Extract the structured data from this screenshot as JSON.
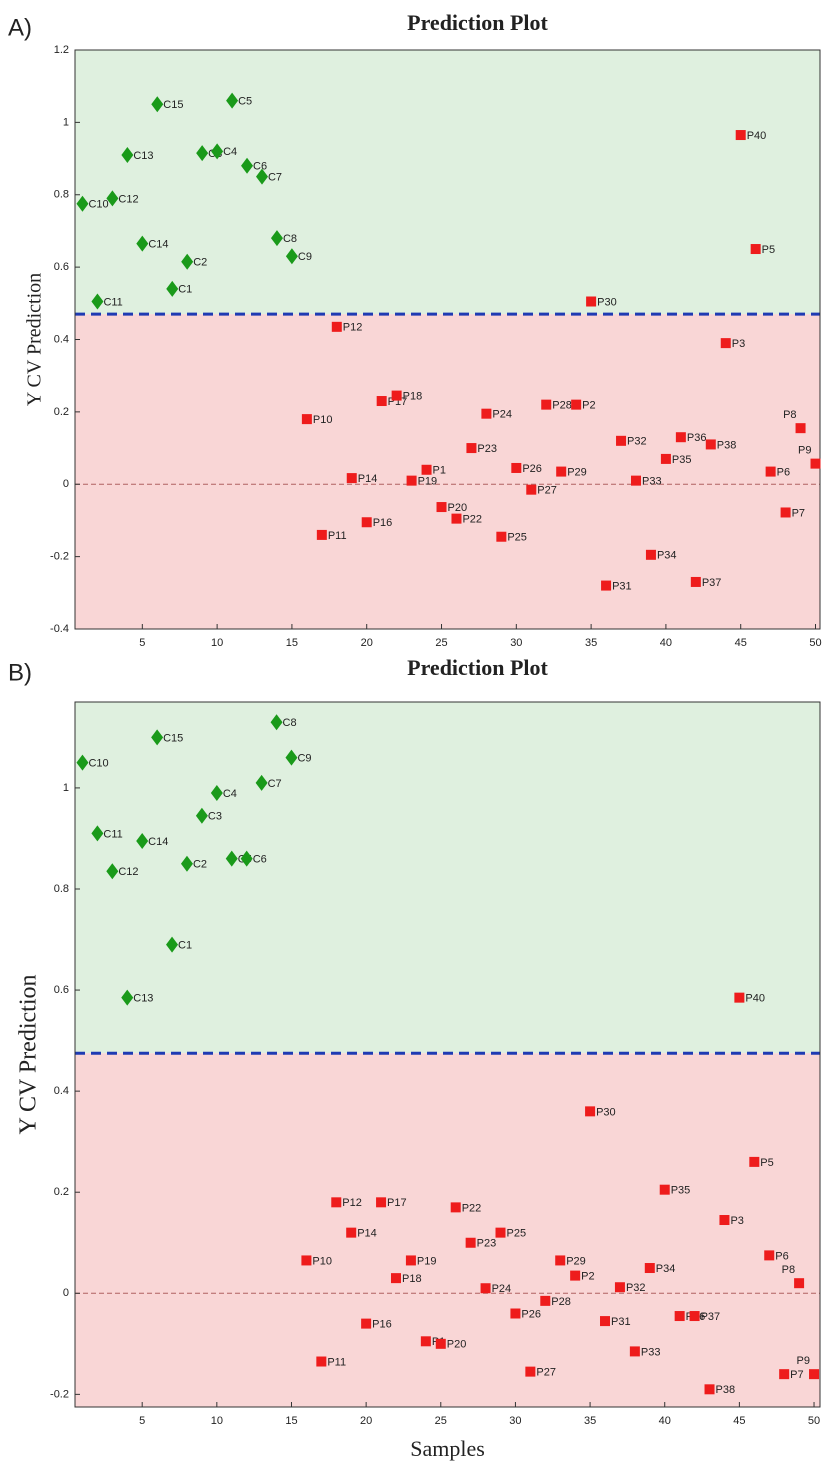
{
  "chart_data": [
    {
      "type": "scatter",
      "panel_label": "A)",
      "title": "Prediction Plot",
      "ylabel": "Y CV Prediction",
      "xlim": [
        0.5,
        50.3
      ],
      "xticks": [
        5,
        10,
        15,
        20,
        25,
        30,
        35,
        40,
        45,
        50
      ],
      "ylim": [
        -0.4,
        1.2
      ],
      "yticks": [
        -0.4,
        -0.2,
        0,
        0.2,
        0.4,
        0.6,
        0.8,
        1,
        1.2
      ],
      "threshold": 0.47,
      "threshold_color": "#1f3bb3",
      "reference_line": 0,
      "above_color": "#dff0df",
      "below_color": "#f9d6d6",
      "series": [
        {
          "marker": "diamond",
          "color": "#1a9a1a",
          "x": [
            1,
            2,
            3,
            4,
            5,
            6,
            7,
            8,
            9,
            10,
            11,
            12,
            13,
            14,
            15
          ],
          "labels": [
            "C10",
            "C11",
            "C12",
            "C13",
            "C14",
            "C15",
            "C1",
            "C2",
            "C3",
            "C4",
            "C5",
            "C6",
            "C7",
            "C8",
            "C9"
          ],
          "values": [
            0.775,
            0.505,
            0.79,
            0.91,
            0.665,
            1.05,
            0.54,
            0.615,
            0.915,
            0.92,
            1.06,
            0.88,
            0.85,
            0.68,
            0.63
          ]
        },
        {
          "marker": "square",
          "color": "#ee1c1c",
          "x": [
            16,
            17,
            18,
            19,
            20,
            21,
            22,
            23,
            24,
            25,
            26,
            27,
            28,
            29,
            30,
            31,
            32,
            33,
            34,
            35,
            36,
            37,
            38,
            39,
            40,
            41,
            42,
            43,
            44,
            45,
            46,
            47,
            48,
            49,
            50
          ],
          "labels": [
            "P10",
            "P11",
            "P12",
            "P14",
            "P16",
            "P17",
            "P18",
            "P19",
            "P1",
            "P20",
            "P22",
            "P23",
            "P24",
            "P25",
            "P26",
            "P27",
            "P28",
            "P29",
            "P2",
            "P30",
            "P31",
            "P32",
            "P33",
            "P34",
            "P35",
            "P36",
            "P37",
            "P38",
            "P3",
            "P40",
            "P5",
            "P6",
            "P7",
            "P8",
            "P9"
          ],
          "values": [
            0.18,
            -0.14,
            0.435,
            0.017,
            -0.105,
            0.23,
            0.245,
            0.01,
            0.04,
            -0.063,
            -0.095,
            0.1,
            0.195,
            -0.145,
            0.045,
            -0.015,
            0.22,
            0.035,
            0.22,
            0.505,
            -0.28,
            0.12,
            0.01,
            -0.195,
            0.07,
            0.13,
            -0.27,
            0.11,
            0.39,
            0.965,
            0.65,
            0.035,
            -0.078,
            0.155,
            0.057
          ]
        }
      ]
    },
    {
      "type": "scatter",
      "panel_label": "B)",
      "title": "Prediction Plot",
      "ylabel": "Y CV Prediction",
      "xlabel": "Samples",
      "xlim": [
        0.5,
        50.4
      ],
      "xticks": [
        5,
        10,
        15,
        20,
        25,
        30,
        35,
        40,
        45,
        50
      ],
      "ylim": [
        -0.225,
        1.17
      ],
      "yticks": [
        -0.2,
        0,
        0.2,
        0.4,
        0.6,
        0.8,
        1
      ],
      "threshold": 0.475,
      "threshold_color": "#1f3bb3",
      "reference_line": 0,
      "above_color": "#dff0df",
      "below_color": "#f9d6d6",
      "series": [
        {
          "marker": "diamond",
          "color": "#1a9a1a",
          "x": [
            1,
            2,
            3,
            4,
            5,
            6,
            7,
            8,
            9,
            10,
            11,
            12,
            13,
            14,
            15
          ],
          "labels": [
            "C10",
            "C11",
            "C12",
            "C13",
            "C14",
            "C15",
            "C1",
            "C2",
            "C3",
            "C4",
            "C5",
            "C6",
            "C7",
            "C8",
            "C9"
          ],
          "values": [
            1.05,
            0.91,
            0.835,
            0.585,
            0.895,
            1.1,
            0.69,
            0.85,
            0.945,
            0.99,
            0.86,
            0.86,
            1.01,
            1.13,
            1.06
          ]
        },
        {
          "marker": "square",
          "color": "#ee1c1c",
          "x": [
            16,
            17,
            18,
            19,
            20,
            21,
            22,
            23,
            24,
            25,
            26,
            27,
            28,
            29,
            30,
            31,
            32,
            33,
            34,
            35,
            36,
            37,
            38,
            39,
            40,
            41,
            42,
            43,
            44,
            45,
            46,
            47,
            48,
            49,
            50
          ],
          "labels": [
            "P10",
            "P11",
            "P12",
            "P14",
            "P16",
            "P17",
            "P18",
            "P19",
            "P1",
            "P20",
            "P22",
            "P23",
            "P24",
            "P25",
            "P26",
            "P27",
            "P28",
            "P29",
            "P2",
            "P30",
            "P31",
            "P32",
            "P33",
            "P34",
            "P35",
            "P36",
            "P37",
            "P38",
            "P3",
            "P40",
            "P5",
            "P6",
            "P7",
            "P8",
            "P9"
          ],
          "values": [
            0.065,
            -0.135,
            0.18,
            0.12,
            -0.06,
            0.18,
            0.03,
            0.065,
            -0.095,
            -0.1,
            0.17,
            0.1,
            0.01,
            0.12,
            -0.04,
            -0.155,
            -0.015,
            0.065,
            0.035,
            0.36,
            -0.055,
            0.012,
            -0.115,
            0.05,
            0.205,
            -0.045,
            -0.045,
            -0.19,
            0.145,
            0.585,
            0.26,
            0.075,
            -0.16,
            0.02,
            -0.16
          ]
        }
      ]
    }
  ]
}
